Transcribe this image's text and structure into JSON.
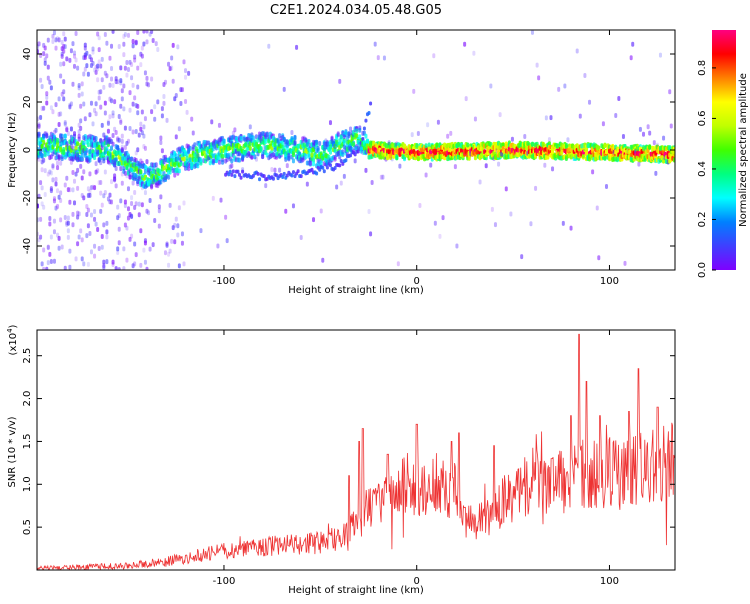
{
  "title": "C2E1.2024.034.05.48.G05",
  "chart_data": [
    {
      "type": "heatmap",
      "xlabel": "Height of straight line (km)",
      "ylabel": "Frequency (Hz)",
      "xlim": [
        -197,
        134
      ],
      "ylim": [
        -50,
        50
      ],
      "xticks": [
        -100,
        0,
        100
      ],
      "yticks": [
        -40,
        -20,
        0,
        20,
        40
      ],
      "colorbar": {
        "label": "Normalized spectral amplitude",
        "range": [
          0.0,
          0.95
        ],
        "ticks": [
          0.0,
          0.2,
          0.4,
          0.6,
          0.8
        ],
        "colormap": [
          "#7f00ff",
          "#3f3fff",
          "#0080ff",
          "#00ffff",
          "#00ff80",
          "#40ff00",
          "#c0ff00",
          "#ffff00",
          "#ff8000",
          "#ff0000",
          "#ff0080"
        ]
      },
      "features": [
        {
          "name": "main trace",
          "points": [
            [
              -195,
              2
            ],
            [
              -160,
              0
            ],
            [
              -140,
              -12
            ],
            [
              -120,
              -3
            ],
            [
              -100,
              0
            ],
            [
              -80,
              2
            ],
            [
              -60,
              0
            ],
            [
              -50,
              -2
            ],
            [
              -40,
              2
            ],
            [
              -30,
              5
            ],
            [
              -25,
              0
            ],
            [
              0,
              -1
            ],
            [
              50,
              0
            ],
            [
              100,
              -1
            ],
            [
              134,
              -2
            ]
          ]
        },
        {
          "name": "secondary trace",
          "points": [
            [
              -100,
              -10
            ],
            [
              -80,
              -11
            ],
            [
              -60,
              -10
            ],
            [
              -40,
              -6
            ],
            [
              -30,
              0
            ],
            [
              -24,
              20
            ]
          ]
        }
      ]
    },
    {
      "type": "line",
      "xlabel": "Height of straight line (km)",
      "ylabel": "SNR (10 * v/v)",
      "yscale_label": "(x10",
      "yscale_exp": "4",
      "xlim": [
        -197,
        134
      ],
      "ylim": [
        0,
        2.8
      ],
      "xticks": [
        -100,
        0,
        100
      ],
      "yticks": [
        0.5,
        1.0,
        1.5,
        2.0,
        2.5
      ],
      "yticklabels": [
        "0.5",
        "1.0",
        "1.5",
        "2.0",
        "2.5"
      ],
      "color": "#ee3333",
      "x": [
        -197,
        -150,
        -130,
        -115,
        -100,
        -85,
        -75,
        -60,
        -50,
        -40,
        -35,
        -30,
        -25,
        -20,
        -15,
        -10,
        -5,
        0,
        5,
        10,
        15,
        20,
        22,
        25,
        30,
        35,
        40,
        45,
        50,
        55,
        60,
        65,
        70,
        75,
        80,
        85,
        90,
        95,
        100,
        105,
        110,
        115,
        120,
        125,
        130,
        134
      ],
      "y": [
        0.02,
        0.05,
        0.1,
        0.16,
        0.22,
        0.25,
        0.28,
        0.3,
        0.32,
        0.38,
        0.45,
        0.55,
        0.75,
        0.8,
        0.85,
        0.9,
        1.0,
        0.95,
        1.0,
        1.05,
        0.95,
        0.95,
        0.65,
        0.55,
        0.55,
        0.6,
        0.7,
        0.8,
        0.85,
        0.95,
        1.05,
        1.05,
        1.0,
        1.05,
        1.05,
        1.1,
        1.15,
        1.1,
        1.15,
        1.1,
        1.15,
        1.2,
        1.25,
        1.2,
        1.3,
        1.25
      ],
      "spikes": [
        [
          -35,
          1.1
        ],
        [
          -30,
          1.5
        ],
        [
          -28,
          1.65
        ],
        [
          -15,
          1.35
        ],
        [
          0,
          1.7
        ],
        [
          18,
          1.5
        ],
        [
          22,
          1.6
        ],
        [
          40,
          1.45
        ],
        [
          70,
          1.3
        ],
        [
          80,
          1.8
        ],
        [
          84,
          2.75
        ],
        [
          88,
          2.2
        ],
        [
          95,
          1.8
        ],
        [
          110,
          1.85
        ],
        [
          115,
          2.35
        ],
        [
          125,
          1.9
        ]
      ]
    }
  ]
}
